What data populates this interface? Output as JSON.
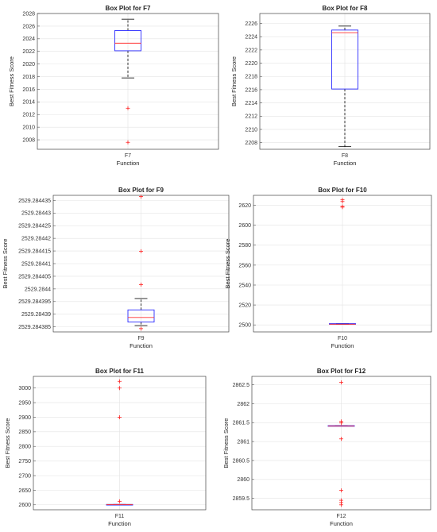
{
  "chart_data": [
    {
      "type": "box",
      "title": "Box Plot for F7",
      "xlabel": "Function",
      "ylabel": "Best Fitness Score",
      "categories": [
        "F7"
      ],
      "ylim": [
        2006.5,
        2028
      ],
      "yticks": [
        "2008",
        "2010",
        "2012",
        "2014",
        "2016",
        "2018",
        "2020",
        "2022",
        "2024",
        "2026",
        "2028"
      ],
      "ytick_values": [
        2008,
        2010,
        2012,
        2014,
        2016,
        2018,
        2020,
        2022,
        2024,
        2026,
        2028
      ],
      "box": {
        "whisker_low": 2017.8,
        "q1": 2022.1,
        "median": 2023.3,
        "q3": 2025.3,
        "whisker_high": 2027.1
      },
      "outliers": [
        2013.0,
        2007.6
      ]
    },
    {
      "type": "box",
      "title": "Box Plot for F8",
      "xlabel": "Function",
      "ylabel": "Best Fitness Score",
      "categories": [
        "F8"
      ],
      "ylim": [
        2207,
        2227.5
      ],
      "yticks": [
        "2208",
        "2210",
        "2212",
        "2214",
        "2216",
        "2218",
        "2220",
        "2222",
        "2224",
        "2226"
      ],
      "ytick_values": [
        2208,
        2210,
        2212,
        2214,
        2216,
        2218,
        2220,
        2222,
        2224,
        2226
      ],
      "box": {
        "whisker_low": 2207.4,
        "q1": 2216.1,
        "median": 2224.6,
        "q3": 2225.0,
        "whisker_high": 2225.6
      },
      "outliers": []
    },
    {
      "type": "box",
      "title": "Box Plot for F9",
      "xlabel": "Function",
      "ylabel": "Best Fitness Score",
      "categories": [
        "F9"
      ],
      "ylim": [
        2529.284383,
        2529.284437
      ],
      "yticks": [
        "2529.284385",
        "2529.28439",
        "2529.284395",
        "2529.2844",
        "2529.284405",
        "2529.28441",
        "2529.284415",
        "2529.28442",
        "2529.284425",
        "2529.28443",
        "2529.284435"
      ],
      "ytick_values": [
        2529.284385,
        2529.28439,
        2529.284395,
        2529.2844,
        2529.284405,
        2529.28441,
        2529.284415,
        2529.28442,
        2529.284425,
        2529.28443,
        2529.284435
      ],
      "box": {
        "whisker_low": 2529.2843855,
        "q1": 2529.2843869,
        "median": 2529.2843887,
        "q3": 2529.2843917,
        "whisker_high": 2529.2843962
      },
      "outliers": [
        2529.2844365,
        2529.2844149,
        2529.2844017,
        2529.2843843
      ]
    },
    {
      "type": "box",
      "title": "Box Plot for F10",
      "xlabel": "Function",
      "ylabel": "Best Fitness Score",
      "categories": [
        "F10"
      ],
      "ylim": [
        2493,
        2630
      ],
      "yticks": [
        "2500",
        "2520",
        "2540",
        "2560",
        "2580",
        "2600",
        "2620"
      ],
      "ytick_values": [
        2500,
        2520,
        2540,
        2560,
        2580,
        2600,
        2620
      ],
      "box": {
        "whisker_low": 2500.7,
        "q1": 2500.7,
        "median": 2500.7,
        "q3": 2501.3,
        "whisker_high": 2501.3
      },
      "outliers": [
        2625.5,
        2623.8,
        2618.8,
        2618.2
      ]
    },
    {
      "type": "box",
      "title": "Box Plot for F11",
      "xlabel": "Function",
      "ylabel": "Best Fitness Score",
      "categories": [
        "F11"
      ],
      "ylim": [
        2583,
        3040
      ],
      "yticks": [
        "2600",
        "2650",
        "2700",
        "2750",
        "2800",
        "2850",
        "2900",
        "2950",
        "3000"
      ],
      "ytick_values": [
        2600,
        2650,
        2700,
        2750,
        2800,
        2850,
        2900,
        2950,
        3000
      ],
      "box": {
        "whisker_low": 2600.5,
        "q1": 2600.5,
        "median": 2600.8,
        "q3": 2601.3,
        "whisker_high": 2601.3
      },
      "outliers": [
        3023,
        3000,
        2900,
        2612
      ]
    },
    {
      "type": "box",
      "title": "Box Plot for F12",
      "xlabel": "Function",
      "ylabel": "Best Fitness Score",
      "categories": [
        "F12"
      ],
      "ylim": [
        2859.2,
        2862.72
      ],
      "yticks": [
        "2859.5",
        "2860",
        "2860.5",
        "2861",
        "2861.5",
        "2862",
        "2862.5"
      ],
      "ytick_values": [
        2859.5,
        2860,
        2860.5,
        2861,
        2861.5,
        2862,
        2862.5
      ],
      "box": {
        "whisker_low": 2861.41,
        "q1": 2861.41,
        "median": 2861.41,
        "q3": 2861.42,
        "whisker_high": 2861.42
      },
      "outliers": [
        2862.56,
        2861.53,
        2861.49,
        2861.07,
        2859.71,
        2859.45,
        2859.39,
        2859.33
      ]
    }
  ]
}
